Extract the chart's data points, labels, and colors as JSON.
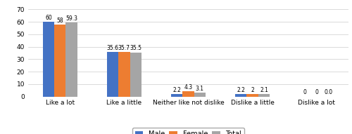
{
  "categories": [
    "Like a lot",
    "Like a little",
    "Neither like not dislike",
    "Dislike a little",
    "Dislike a lot"
  ],
  "male": [
    60,
    35.6,
    2.2,
    2.2,
    0
  ],
  "female": [
    58,
    35.7,
    4.3,
    2.0,
    0
  ],
  "total": [
    59.3,
    35.5,
    3.1,
    2.1,
    0.0
  ],
  "male_labels": [
    "60",
    "35.6",
    "2.2",
    "2.2",
    "0"
  ],
  "female_labels": [
    "58",
    "35.7",
    "4.3",
    "2",
    "0"
  ],
  "total_labels": [
    "59.3",
    "35.5",
    "3.1",
    "2.1",
    "0.0"
  ],
  "male_color": "#4472C4",
  "female_color": "#ED7D31",
  "total_color": "#A5A5A5",
  "ylim": [
    0,
    70
  ],
  "yticks": [
    0,
    10,
    20,
    30,
    40,
    50,
    60,
    70
  ],
  "bar_width": 0.18,
  "label_fontsize": 5.5,
  "tick_fontsize": 6.5,
  "legend_fontsize": 7.0,
  "background_color": "#FFFFFF",
  "grid_color": "#CCCCCC"
}
